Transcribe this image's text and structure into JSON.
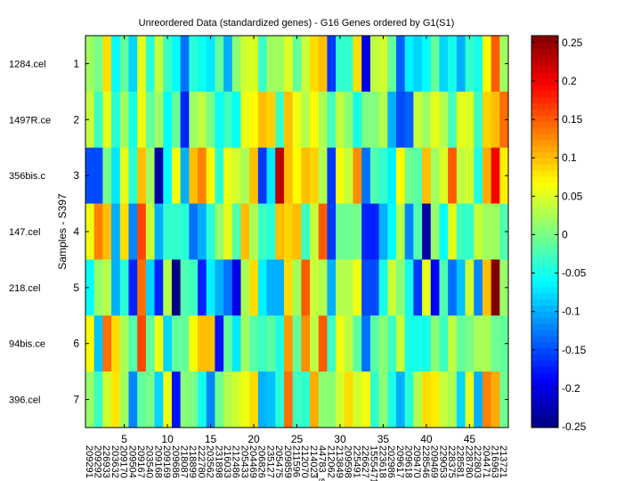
{
  "chart_data": {
    "type": "heatmap",
    "title": "Unreordered Data (standardized genes) - G16 Genes ordered by G1(S1)",
    "xlabel": "",
    "ylabel": "Samples - S397",
    "colormap": "jet",
    "clim": [
      -0.251,
      0.259
    ],
    "colorbar_ticks": [
      0.25,
      0.2,
      0.15,
      0.1,
      0.05,
      0,
      -0.05,
      -0.1,
      -0.15,
      -0.2,
      -0.25
    ],
    "colorbar_tick_labels": [
      "0.25",
      "0.2",
      "0.15",
      "0.1",
      "0.05",
      "0",
      "-0.05",
      "-0.1",
      "-0.15",
      "-0.2",
      "-0.25"
    ],
    "x_ticks": [
      5,
      10,
      15,
      20,
      25,
      30,
      35,
      40,
      45
    ],
    "x_tick_labels": [
      "5",
      "10",
      "15",
      "20",
      "25",
      "30",
      "35",
      "40",
      "45"
    ],
    "y_ticks": [
      1,
      2,
      3,
      4,
      5,
      6,
      7
    ],
    "y_tick_labels": [
      "1",
      "2",
      "3",
      "4",
      "5",
      "6",
      "7"
    ],
    "samples": [
      "1284.cel",
      "1497R.ce",
      "356bis.c",
      "147.cel",
      "218.cel",
      "94bis.ce",
      "396.cel"
    ],
    "genes": [
      "209291",
      "209292",
      "226933",
      "203632",
      "209170",
      "209504",
      "209167",
      "203540",
      "209168",
      "209169",
      "209686",
      "218087",
      "218899",
      "222780",
      "203562",
      "231898",
      "216033",
      "212486",
      "205433",
      "204469",
      "206826",
      "235127",
      "205475",
      "209859",
      "211596",
      "212070",
      "214023",
      "44783_s",
      "212062",
      "213849",
      "209598",
      "225491",
      "226627",
      "1555471",
      "223618",
      "202986",
      "209617",
      "209618",
      "209470",
      "228546",
      "209469",
      "229053",
      "228375",
      "228581",
      "228780",
      "222803",
      "204471",
      "216963",
      "213721"
    ],
    "values": [
      [
        0.02,
        0.0,
        0.085,
        -0.06,
        -0.01,
        -0.08,
        0.055,
        -0.04,
        0.04,
        -0.03,
        -0.06,
        -0.13,
        -0.04,
        -0.055,
        -0.07,
        -0.01,
        -0.1,
        0.01,
        0.045,
        0.05,
        -0.03,
        0.02,
        0.02,
        0.05,
        -0.01,
        0.04,
        0.085,
        0.1,
        -0.16,
        -0.035,
        -0.035,
        0.085,
        -0.2,
        0.035,
        0.045,
        -0.01,
        -0.14,
        -0.065,
        -0.08,
        -0.06,
        -0.01,
        -0.08,
        -0.05,
        -0.1,
        -0.035,
        -0.05,
        0.07,
        0.15,
        0.02
      ],
      [
        0.04,
        -0.03,
        0.055,
        -0.04,
        0.02,
        -0.05,
        0.06,
        -0.01,
        0.02,
        -0.06,
        -0.01,
        -0.17,
        0.02,
        0.035,
        0.0,
        -0.055,
        -0.03,
        -0.055,
        0.06,
        0.07,
        0.1,
        0.09,
        -0.03,
        0.1,
        0.06,
        0.03,
        0.07,
        0.025,
        -0.025,
        0.035,
        0.01,
        -0.05,
        0.005,
        0.005,
        0.03,
        -0.1,
        -0.15,
        -0.14,
        0.04,
        0.02,
        0.055,
        0.03,
        -0.025,
        0.055,
        0.05,
        -0.03,
        0.09,
        0.1,
        0.14
      ],
      [
        -0.15,
        -0.15,
        0.0,
        -0.07,
        0.055,
        -0.04,
        0.1,
        0.02,
        -0.23,
        -0.06,
        0.06,
        -0.1,
        0.1,
        0.13,
        0.07,
        -0.04,
        0.06,
        0.045,
        0.025,
        0.1,
        -0.16,
        -0.07,
        0.23,
        0.1,
        0.07,
        0.1,
        0.09,
        0.03,
        -0.16,
        0.06,
        0.04,
        0.125,
        -0.13,
        -0.02,
        -0.035,
        -0.065,
        0.07,
        -0.005,
        -0.015,
        0.1,
        0.02,
        0.05,
        0.15,
        0.035,
        0.045,
        -0.045,
        0.11,
        0.2,
        0.075
      ],
      [
        0.06,
        0.13,
        0.1,
        -0.1,
        0.085,
        -0.12,
        0.16,
        0.04,
        -0.1,
        -0.035,
        -0.035,
        -0.04,
        -0.13,
        -0.1,
        -0.04,
        0.015,
        0.055,
        -0.02,
        0.1,
        0.025,
        -0.03,
        -0.04,
        0.1,
        0.09,
        0.1,
        -0.03,
        0.04,
        0.15,
        -0.16,
        -0.005,
        -0.005,
        0.0,
        -0.17,
        -0.17,
        -0.1,
        -0.06,
        0.03,
        -0.12,
        -0.02,
        -0.23,
        0.015,
        -0.06,
        0.055,
        -0.03,
        -0.035,
        0.04,
        0.02,
        0.02,
        -0.02
      ],
      [
        -0.06,
        0.015,
        0.03,
        -0.1,
        -0.04,
        -0.17,
        0.14,
        -0.08,
        -0.17,
        0.03,
        -0.25,
        -0.02,
        -0.03,
        -0.17,
        -0.065,
        -0.1,
        -0.13,
        -0.2,
        0.025,
        0.085,
        -0.065,
        -0.1,
        -0.1,
        0.085,
        0.02,
        0.15,
        0.04,
        0.03,
        -0.1,
        0.03,
        0.03,
        0.06,
        -0.15,
        -0.15,
        -0.05,
        0.04,
        0.01,
        -0.05,
        -0.16,
        0.055,
        -0.19,
        -0.02,
        -0.13,
        -0.09,
        0.045,
        -0.12,
        0.1,
        0.26,
        0.015
      ],
      [
        0.07,
        -0.09,
        0.14,
        0.085,
        0.025,
        -0.02,
        0.16,
        -0.01,
        0.06,
        -0.08,
        -0.01,
        -0.01,
        0.07,
        0.1,
        0.1,
        -0.18,
        -0.01,
        -0.07,
        0.02,
        -0.015,
        -0.03,
        -0.015,
        -0.045,
        0.12,
        -0.01,
        0.125,
        0.035,
        0.15,
        -0.03,
        0.06,
        0.035,
        -0.015,
        -0.13,
        -0.015,
        0.01,
        -0.03,
        0.04,
        -0.05,
        -0.05,
        -0.05,
        0.01,
        -0.03,
        0.035,
        -0.01,
        0.0,
        0.025,
        0.025,
        -0.005,
        -0.01
      ],
      [
        0.015,
        -0.03,
        0.045,
        0.08,
        0.02,
        -0.12,
        -0.01,
        0.0,
        -0.08,
        0.06,
        -0.18,
        0.01,
        0.0,
        -0.05,
        -0.12,
        -0.005,
        0.03,
        0.045,
        0.06,
        0.085,
        -0.1,
        -0.09,
        -0.04,
        0.14,
        -0.03,
        -0.035,
        0.11,
        0.01,
        0.01,
        0.045,
        0.085,
        0.045,
        0.06,
        -0.035,
        0.01,
        -0.045,
        -0.1,
        -0.04,
        0.03,
        0.085,
        0.075,
        0.04,
        0.025,
        -0.08,
        0.055,
        -0.1,
        0.13,
        0.11,
        -0.005
      ]
    ]
  }
}
